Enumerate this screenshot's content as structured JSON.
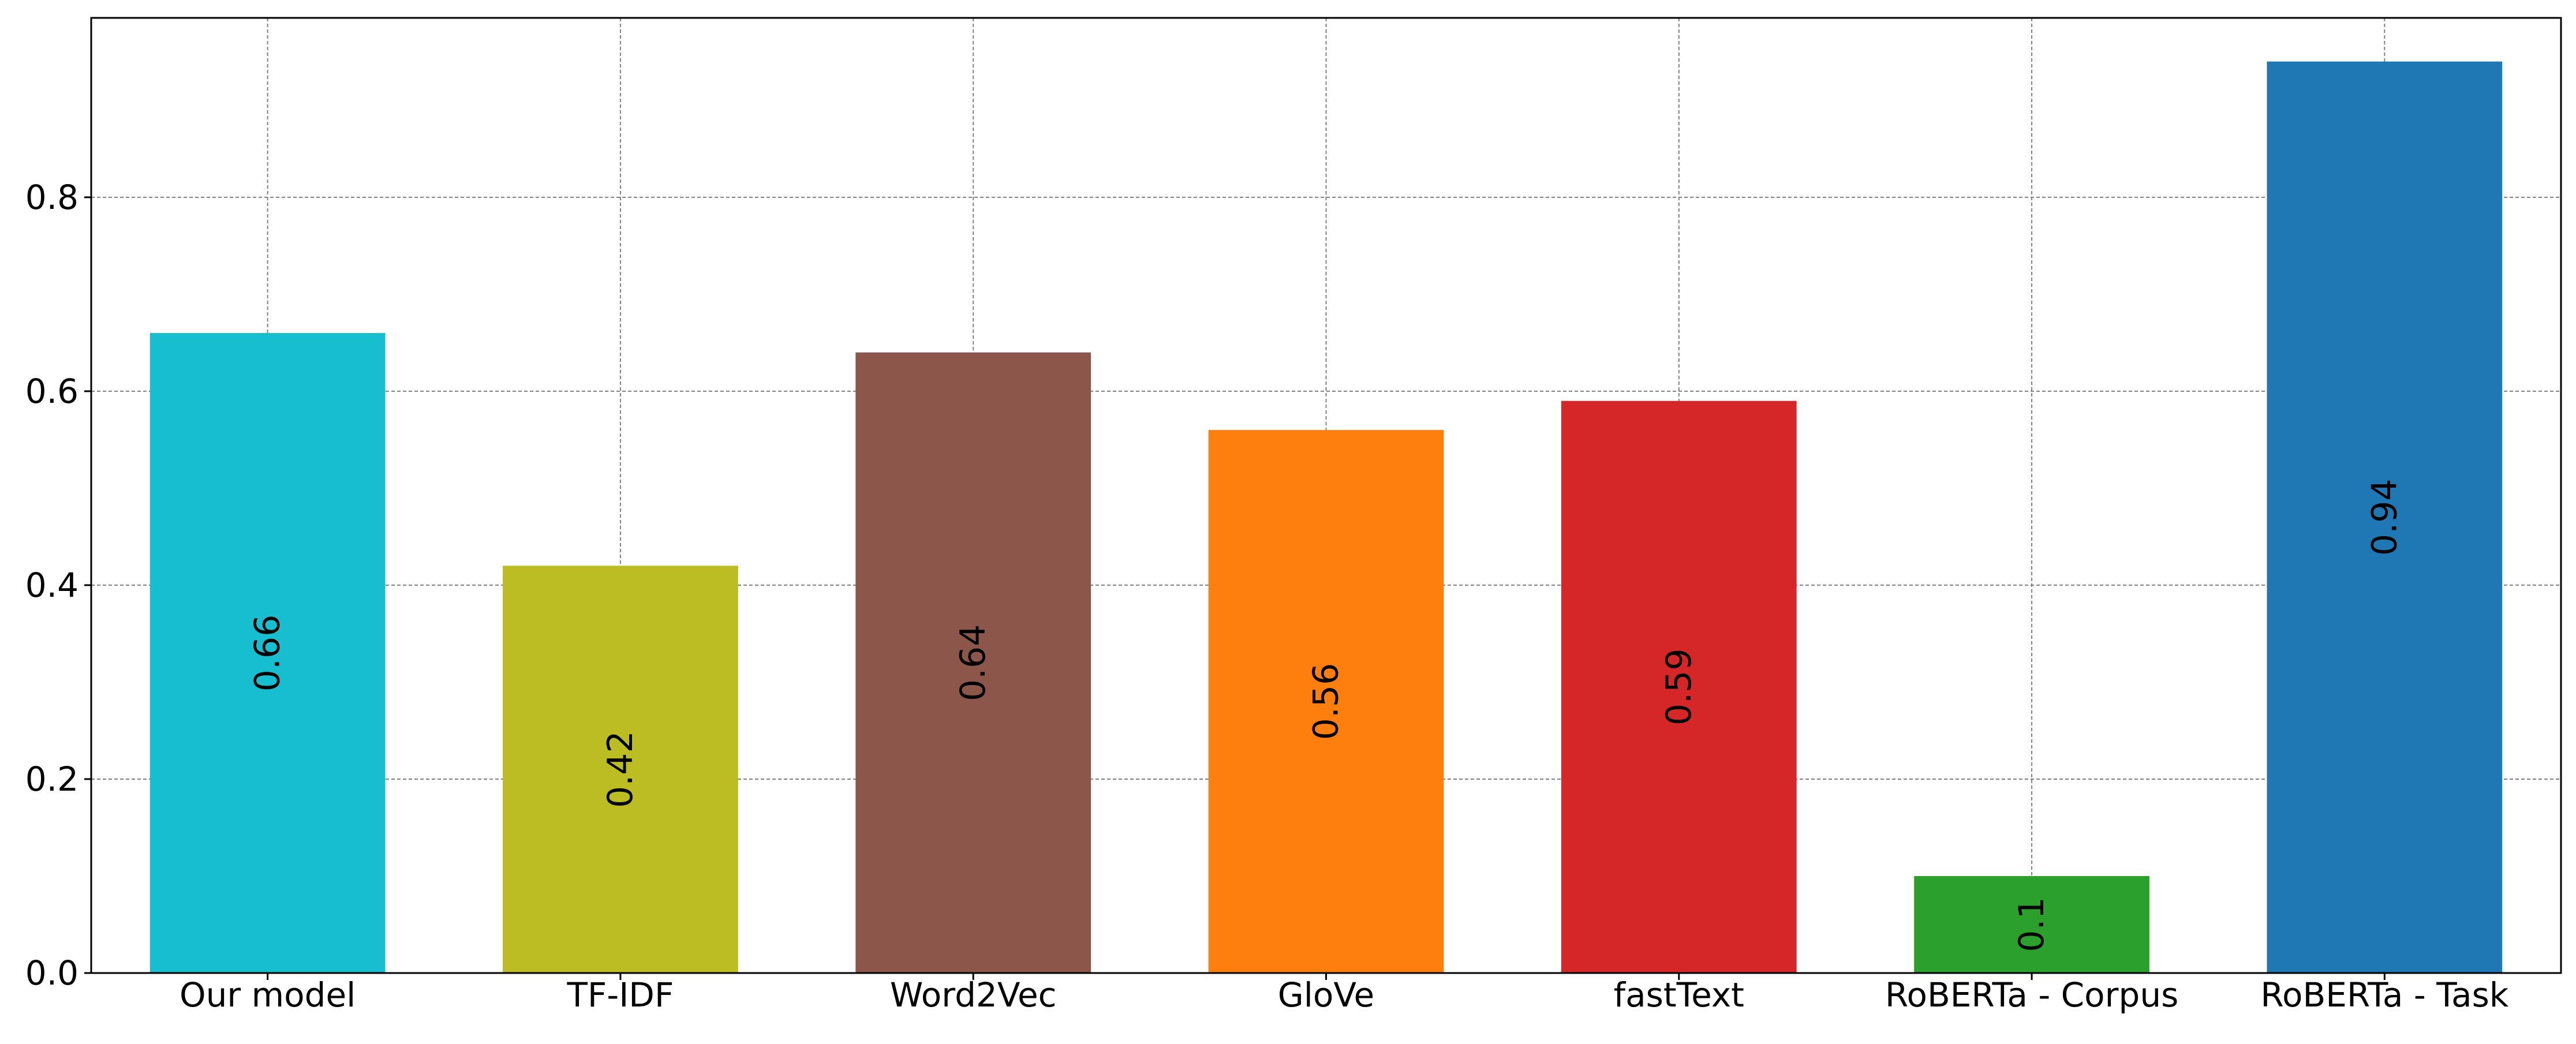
{
  "chart_data": {
    "type": "bar",
    "title": "",
    "xlabel": "",
    "ylabel": "",
    "categories": [
      "Our model",
      "TF-IDF",
      "Word2Vec",
      "GloVe",
      "fastText",
      "RoBERTa - Corpus",
      "RoBERTa - Task"
    ],
    "values": [
      0.66,
      0.42,
      0.64,
      0.56,
      0.59,
      0.1,
      0.94
    ],
    "data_labels": [
      "0.66",
      "0.42",
      "0.64",
      "0.56",
      "0.59",
      "0.1",
      "0.94"
    ],
    "colors": [
      "#17becf",
      "#bcbd22",
      "#8c564b",
      "#ff7f0e",
      "#d62728",
      "#2ca02c",
      "#1f77b4"
    ],
    "ylim": [
      0,
      0.985
    ],
    "yticks": [
      0.0,
      0.2,
      0.4,
      0.6,
      0.8
    ],
    "ytick_labels": [
      "0.0",
      "0.2",
      "0.4",
      "0.6",
      "0.8"
    ],
    "grid": true,
    "legend": "none"
  }
}
